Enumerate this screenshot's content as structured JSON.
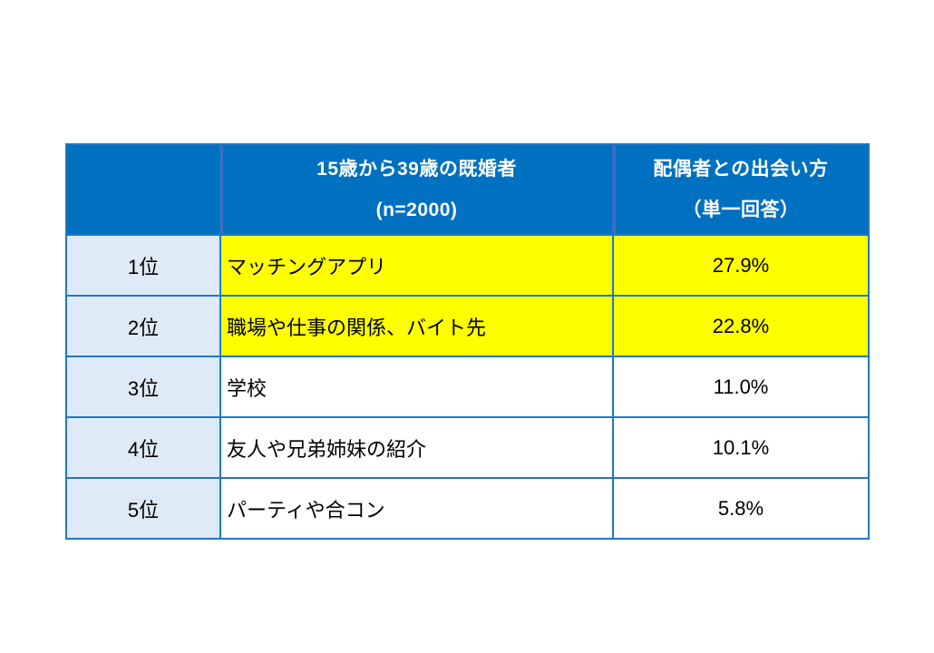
{
  "table": {
    "header": {
      "rank_label": "",
      "method_line1": "15歳から39歳の既婚者",
      "method_line2": "(n=2000)",
      "value_line1": "配偶者との出会い方",
      "value_line2": "（単一回答）"
    },
    "rows": [
      {
        "rank": "1位",
        "method": "マッチングアプリ",
        "value": "27.9%",
        "highlighted": true
      },
      {
        "rank": "2位",
        "method": "職場や仕事の関係、バイト先",
        "value": "22.8%",
        "highlighted": true
      },
      {
        "rank": "3位",
        "method": "学校",
        "value": "11.0%",
        "highlighted": false
      },
      {
        "rank": "4位",
        "method": "友人や兄弟姉妹の紹介",
        "value": "10.1%",
        "highlighted": false
      },
      {
        "rank": "5位",
        "method": "パーティや合コン",
        "value": "5.8%",
        "highlighted": false
      }
    ]
  },
  "colors": {
    "header_bg": "#0070C0",
    "header_text": "#FFFFFF",
    "rank_col_bg": "#DEEAF6",
    "highlight_bg": "#FFFF00",
    "border": "#2077C5",
    "body_text": "#000000",
    "page_bg": "#FFFFFF"
  },
  "chart_data": {
    "type": "table",
    "title": "配偶者との出会い方（15歳から39歳の既婚者, n=2000, 単一回答）",
    "columns": [
      "",
      "15歳から39歳の既婚者 (n=2000)",
      "配偶者との出会い方（単一回答）"
    ],
    "rows": [
      [
        "1位",
        "マッチングアプリ",
        "27.9%"
      ],
      [
        "2位",
        "職場や仕事の関係、バイト先",
        "22.8%"
      ],
      [
        "3位",
        "学校",
        "11.0%"
      ],
      [
        "4位",
        "友人や兄弟姉妹の紹介",
        "10.1%"
      ],
      [
        "5位",
        "パーティや合コン",
        "5.8%"
      ]
    ],
    "categories": [
      "マッチングアプリ",
      "職場や仕事の関係、バイト先",
      "学校",
      "友人や兄弟姉妹の紹介",
      "パーティや合コン"
    ],
    "values": [
      27.9,
      22.8,
      11.0,
      10.1,
      5.8
    ],
    "highlighted_rows": [
      0,
      1
    ],
    "legend_position": "none",
    "grid": true
  }
}
